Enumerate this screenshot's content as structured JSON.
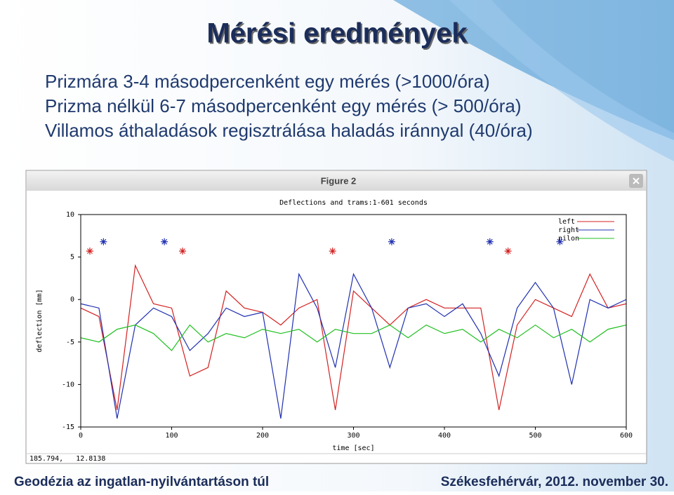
{
  "slide": {
    "title": "Mérési eredmények",
    "lines": [
      "Prizmára 3-4 másodpercenként egy mérés (>1000/óra)",
      "Prizma nélkül 6-7 másodpercenként egy mérés (> 500/óra)",
      "Villamos áthaladások regisztrálása haladás iránnyal (40/óra)"
    ],
    "footer_left": "Geodézia az ingatlan-nyilvántartáson túl",
    "footer_right": "Székesfehérvár, 2012. november 30."
  },
  "window": {
    "title": "Figure 2",
    "status": "185.794,   12.8138"
  },
  "chart_data": {
    "type": "line",
    "title": "Deflections and trams:1-601 seconds",
    "x_label": "time [sec]",
    "y_label": "deflection [mm]",
    "x": [
      0,
      20,
      40,
      60,
      80,
      100,
      120,
      140,
      160,
      180,
      200,
      220,
      240,
      260,
      280,
      300,
      320,
      340,
      360,
      380,
      400,
      420,
      440,
      460,
      480,
      500,
      520,
      540,
      560,
      580,
      600
    ],
    "series": [
      {
        "name": "left",
        "color": "#d42020",
        "values": [
          -1,
          -2,
          -13,
          4,
          -0.5,
          -1,
          -9,
          -8,
          1,
          -1,
          -1.5,
          -3,
          -1,
          0,
          -13,
          1,
          -1,
          -3,
          -1,
          0,
          -1,
          -1,
          -1,
          -13,
          -3,
          0,
          -1,
          -2,
          3,
          -1,
          -0.5
        ]
      },
      {
        "name": "right",
        "color": "#2030b0",
        "values": [
          -0.5,
          -1,
          -14,
          -3,
          -1,
          -2,
          -6,
          -4,
          -1,
          -2,
          -1.5,
          -14,
          3,
          -1,
          -8,
          3,
          -1,
          -8,
          -1,
          -0.5,
          -2,
          -0.5,
          -4,
          -9,
          -1,
          2,
          -1,
          -10,
          0,
          -1,
          0
        ]
      },
      {
        "name": "nilon",
        "color": "#20c020",
        "values": [
          -4.5,
          -5,
          -3.5,
          -3,
          -4,
          -6,
          -3,
          -5,
          -4,
          -4.5,
          -3.5,
          -4,
          -3.5,
          -5,
          -3.5,
          -4,
          -4,
          -3,
          -4.5,
          -3,
          -4,
          -3.5,
          -5,
          -3.5,
          -4.5,
          -3,
          -4.5,
          -3.5,
          -5,
          -3.5,
          -3
        ]
      }
    ],
    "tram_marks": [
      {
        "color": "#d42020",
        "x": [
          10,
          112,
          277,
          470
        ],
        "values": [
          5.7,
          5.7,
          5.7,
          5.7
        ]
      },
      {
        "color": "#2030b0",
        "x": [
          25,
          92,
          342,
          450,
          527
        ],
        "values": [
          6.8,
          6.8,
          6.8,
          6.8,
          6.8
        ]
      }
    ],
    "xlim": [
      0,
      600
    ],
    "ylim": [
      -15,
      10
    ],
    "xticks": [
      0,
      100,
      200,
      300,
      400,
      500,
      600
    ],
    "yticks": [
      -15,
      -10,
      -5,
      0,
      5,
      10
    ]
  }
}
